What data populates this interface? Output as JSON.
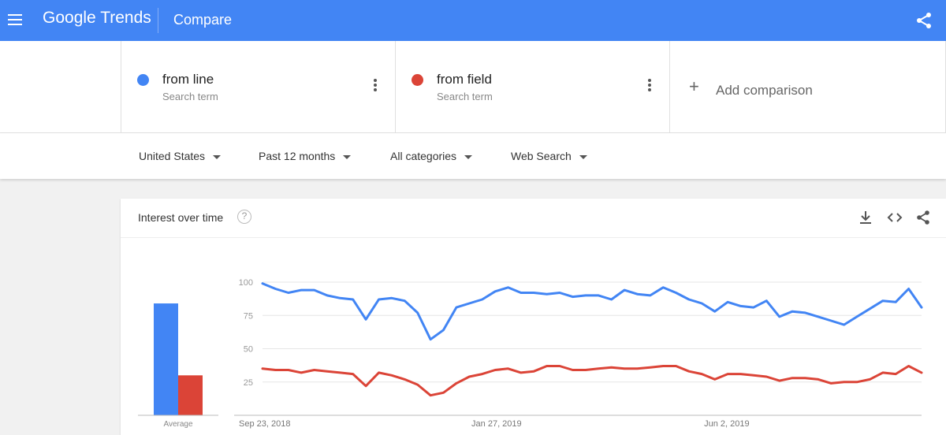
{
  "appbar": {
    "brand_google": "Google",
    "brand_trends": "Trends",
    "title": "Compare",
    "menu_icon": "menu-icon",
    "share_icon": "share-icon"
  },
  "terms": [
    {
      "name": "from line",
      "subtitle": "Search term",
      "color": "#4285f4",
      "menu_icon": "more-vert-icon"
    },
    {
      "name": "from field",
      "subtitle": "Search term",
      "color": "#db4437",
      "menu_icon": "more-vert-icon"
    }
  ],
  "add_comparison": {
    "label": "Add comparison",
    "icon": "plus-icon"
  },
  "filters": [
    {
      "label": "United States"
    },
    {
      "label": "Past 12 months"
    },
    {
      "label": "All categories"
    },
    {
      "label": "Web Search"
    }
  ],
  "interest_card": {
    "title": "Interest over time",
    "help_icon": "help-icon",
    "help_glyph": "?",
    "actions": [
      "download-icon",
      "embed-icon",
      "share-icon"
    ]
  },
  "chart_data": {
    "type": "line",
    "title": "Interest over time",
    "xlabel": "",
    "ylabel": "",
    "ylim": [
      0,
      100
    ],
    "y_ticks": [
      100,
      75,
      50,
      25
    ],
    "x_tick_labels": [
      "Sep 23, 2018",
      "Jan 27, 2019",
      "Jun 2, 2019"
    ],
    "grid": true,
    "series": [
      {
        "name": "from line",
        "color": "#4285f4",
        "average": 84,
        "values": [
          99,
          95,
          92,
          94,
          94,
          90,
          88,
          87,
          72,
          87,
          88,
          86,
          77,
          57,
          64,
          81,
          84,
          87,
          93,
          96,
          92,
          92,
          91,
          92,
          89,
          90,
          90,
          87,
          94,
          91,
          90,
          96,
          92,
          87,
          84,
          78,
          85,
          82,
          81,
          86,
          74,
          78,
          77,
          74,
          71,
          68,
          74,
          80,
          86,
          85,
          95,
          81
        ]
      },
      {
        "name": "from field",
        "color": "#db4437",
        "average": 30,
        "values": [
          35,
          34,
          34,
          32,
          34,
          33,
          32,
          31,
          22,
          32,
          30,
          27,
          23,
          15,
          17,
          24,
          29,
          31,
          34,
          35,
          32,
          33,
          37,
          37,
          34,
          34,
          35,
          36,
          35,
          35,
          36,
          37,
          37,
          33,
          31,
          27,
          31,
          31,
          30,
          29,
          26,
          28,
          28,
          27,
          24,
          25,
          25,
          27,
          32,
          31,
          37,
          32
        ]
      }
    ],
    "average_label": "Average"
  }
}
